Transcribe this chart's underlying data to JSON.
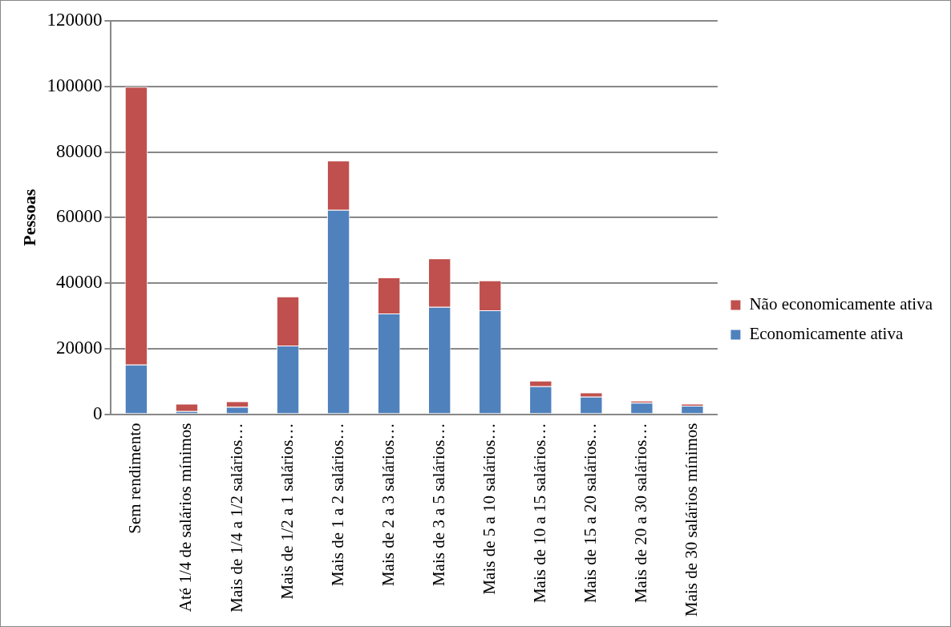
{
  "chart_data": {
    "type": "bar",
    "stacked": true,
    "ylabel": "Pessoas",
    "categories": [
      "Sem rendimento",
      "Até 1/4 de salários mínimos",
      "Mais de 1/4 a 1/2 salários…",
      "Mais de 1/2 a 1 salários…",
      "Mais de 1 a 2 salários…",
      "Mais de 2 a 3 salários…",
      "Mais de 3 a 5 salários…",
      "Mais de 5 a 10 salários…",
      "Mais de 10 a 15 salários…",
      "Mais de 15 a 20 salários…",
      "Mais de 20 a 30 salários…",
      "Mais de 30 salários mínimos"
    ],
    "series": [
      {
        "name": "Economicamente ativa",
        "color": "#4f81bd",
        "values": [
          15100,
          900,
          2200,
          20900,
          62300,
          30700,
          32700,
          31700,
          8500,
          5300,
          3500,
          2600
        ]
      },
      {
        "name": "Não economicamente ativa",
        "color": "#c0504d",
        "values": [
          84800,
          2300,
          1700,
          15000,
          15100,
          11000,
          14800,
          9100,
          1700,
          1300,
          600,
          600
        ]
      }
    ],
    "ylim": [
      0,
      120000
    ],
    "yticks": [
      0,
      20000,
      40000,
      60000,
      80000,
      100000,
      120000
    ],
    "grid": "y",
    "legend": "right"
  }
}
